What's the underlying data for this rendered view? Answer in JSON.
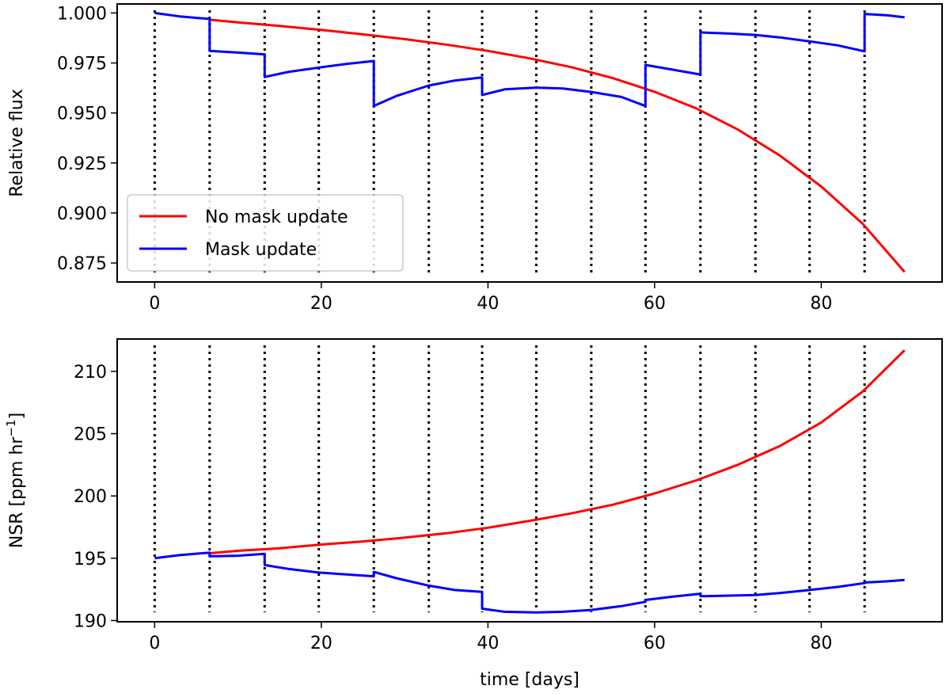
{
  "chart_data": [
    {
      "type": "line",
      "ylabel": "Relative flux",
      "xlabel": "",
      "xlim": [
        -4.5,
        94.5
      ],
      "ylim": [
        0.8655,
        1.0045
      ],
      "xticks": [
        0,
        20,
        40,
        60,
        80
      ],
      "xtick_labels": [
        "0",
        "20",
        "40",
        "60",
        "80"
      ],
      "yticks": [
        0.875,
        0.9,
        0.925,
        0.95,
        0.975,
        1.0
      ],
      "ytick_labels": [
        "0.875",
        "0.900",
        "0.925",
        "0.950",
        "0.975",
        "1.000"
      ],
      "vlines": [
        0,
        6.6,
        13.2,
        19.7,
        26.3,
        32.9,
        39.3,
        45.8,
        52.4,
        58.9,
        65.5,
        72.1,
        78.6,
        85.2
      ],
      "legend": {
        "placement": "lower-left",
        "entries": [
          "No mask update",
          "Mask update"
        ]
      },
      "series": [
        {
          "name": "No mask update",
          "color": "#ff0000",
          "x": [
            6.6,
            10,
            15,
            20,
            25,
            30,
            35,
            40,
            45,
            50,
            55,
            60,
            65,
            70,
            75,
            80,
            85,
            90
          ],
          "y": [
            0.9966,
            0.9953,
            0.9935,
            0.9915,
            0.9893,
            0.9869,
            0.9842,
            0.981,
            0.9773,
            0.9729,
            0.9674,
            0.9606,
            0.9523,
            0.9417,
            0.9288,
            0.9132,
            0.8945,
            0.8705
          ]
        },
        {
          "name": "Mask update",
          "color": "#0000ff",
          "segments": [
            {
              "x": [
                0,
                3,
                6.6
              ],
              "y": [
                1.0,
                0.9983,
                0.997
              ]
            },
            {
              "x": [
                6.6,
                10,
                13.2
              ],
              "y": [
                0.981,
                0.9802,
                0.9793
              ]
            },
            {
              "x": [
                13.2,
                16,
                19.7,
                23,
                26.3
              ],
              "y": [
                0.968,
                0.9705,
                0.9727,
                0.9745,
                0.976
              ]
            },
            {
              "x": [
                26.3,
                29,
                32.9,
                36,
                39.3
              ],
              "y": [
                0.9535,
                0.9585,
                0.9637,
                0.9662,
                0.9678
              ]
            },
            {
              "x": [
                39.3,
                42,
                45.8,
                49,
                52.4,
                56,
                58.9
              ],
              "y": [
                0.959,
                0.9618,
                0.9627,
                0.9622,
                0.9605,
                0.958,
                0.9535
              ]
            },
            {
              "x": [
                58.9,
                62,
                65.5
              ],
              "y": [
                0.974,
                0.9718,
                0.9692
              ]
            },
            {
              "x": [
                65.5,
                69,
                72.1,
                75,
                78.6,
                82,
                85.2
              ],
              "y": [
                0.9903,
                0.9897,
                0.989,
                0.9878,
                0.9858,
                0.9838,
                0.9808
              ]
            },
            {
              "x": [
                85.2,
                88,
                90
              ],
              "y": [
                0.9995,
                0.9988,
                0.9978
              ]
            }
          ]
        }
      ]
    },
    {
      "type": "line",
      "ylabel": "NSR [ppm hr",
      "ylabel_sup": "−1",
      "ylabel_end": "]",
      "xlabel": "time [days]",
      "xlim": [
        -4.5,
        94.5
      ],
      "ylim": [
        189.9,
        212.6
      ],
      "xticks": [
        0,
        20,
        40,
        60,
        80
      ],
      "xtick_labels": [
        "0",
        "20",
        "40",
        "60",
        "80"
      ],
      "yticks": [
        190,
        195,
        200,
        205,
        210
      ],
      "ytick_labels": [
        "190",
        "195",
        "200",
        "205",
        "210"
      ],
      "vlines": [
        0,
        6.6,
        13.2,
        19.7,
        26.3,
        32.9,
        39.3,
        45.8,
        52.4,
        58.9,
        65.5,
        72.1,
        78.6,
        85.2
      ],
      "series": [
        {
          "name": "No mask update",
          "color": "#ff0000",
          "x": [
            6.6,
            10,
            15,
            20,
            25,
            30,
            35,
            40,
            45,
            50,
            55,
            60,
            65,
            70,
            75,
            80,
            85,
            90
          ],
          "y": [
            195.4,
            195.6,
            195.8,
            196.1,
            196.35,
            196.65,
            197.0,
            197.45,
            198.0,
            198.6,
            199.3,
            200.2,
            201.25,
            202.5,
            204.0,
            205.9,
            208.4,
            211.7
          ]
        },
        {
          "name": "Mask update",
          "color": "#0000ff",
          "segments": [
            {
              "x": [
                0,
                3,
                6.6
              ],
              "y": [
                195.0,
                195.25,
                195.45
              ]
            },
            {
              "x": [
                6.6,
                10,
                13.2
              ],
              "y": [
                195.15,
                195.2,
                195.35
              ]
            },
            {
              "x": [
                13.2,
                16,
                19.7,
                23,
                26.3
              ],
              "y": [
                194.45,
                194.15,
                193.85,
                193.7,
                193.55
              ]
            },
            {
              "x": [
                26.3,
                29,
                32.9,
                36,
                39.3
              ],
              "y": [
                193.9,
                193.4,
                192.8,
                192.45,
                192.3
              ]
            },
            {
              "x": [
                39.3,
                42,
                45.8,
                49,
                52.4,
                56,
                58.9
              ],
              "y": [
                190.95,
                190.7,
                190.65,
                190.7,
                190.85,
                191.15,
                191.5
              ]
            },
            {
              "x": [
                58.9,
                62,
                65.5
              ],
              "y": [
                191.65,
                191.9,
                192.15
              ]
            },
            {
              "x": [
                65.5,
                69,
                72.1,
                75,
                78.6,
                82,
                85.2
              ],
              "y": [
                191.95,
                192.0,
                192.05,
                192.2,
                192.45,
                192.7,
                193.0
              ]
            },
            {
              "x": [
                85.2,
                88,
                90
              ],
              "y": [
                193.05,
                193.15,
                193.25
              ]
            }
          ]
        }
      ]
    }
  ]
}
